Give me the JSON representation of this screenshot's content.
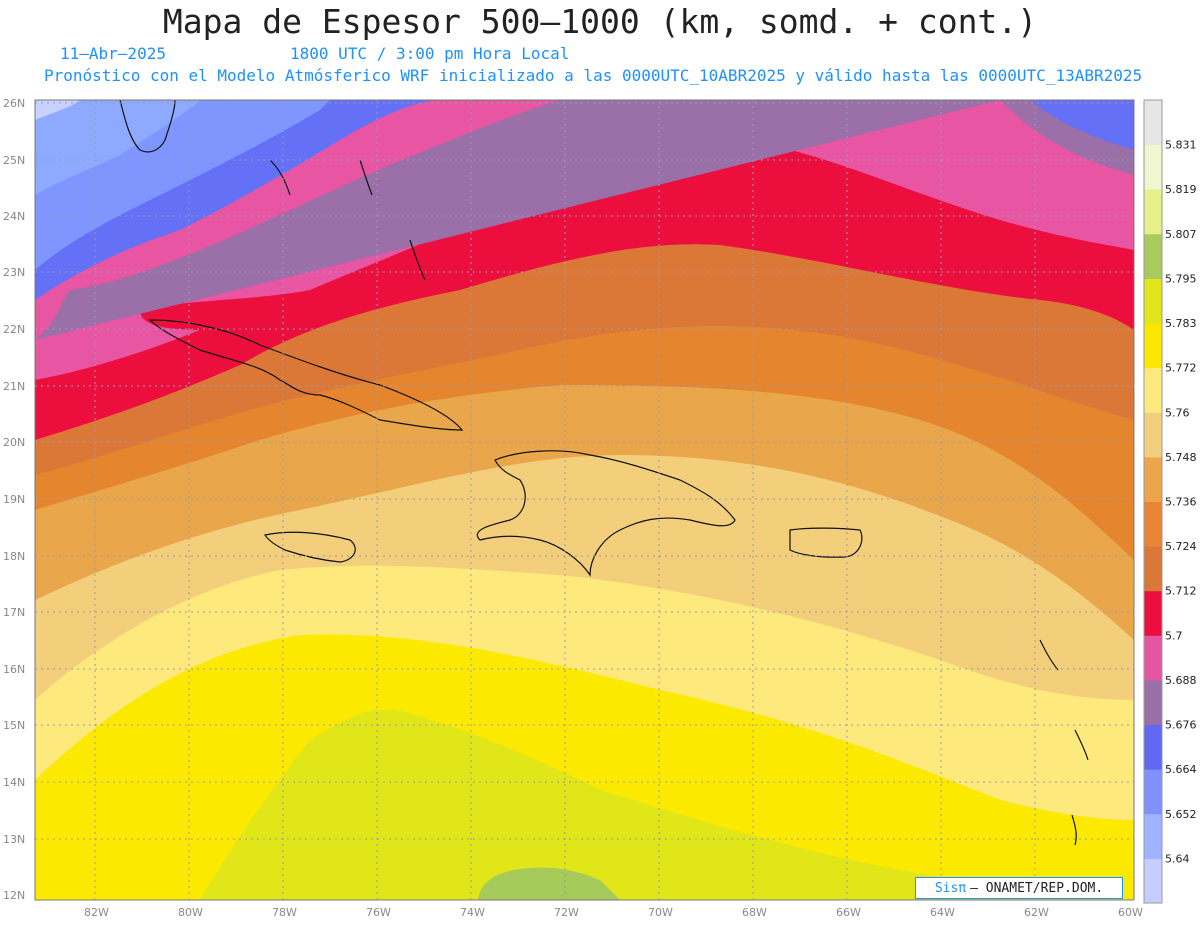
{
  "header": {
    "title": "Mapa de Espesor 500–1000 (km, somd. + cont.)",
    "date": "11–Abr–2025",
    "time": "1800 UTC / 3:00 pm Hora Local",
    "subtitle": "Pronóstico con el Modelo Atmósferico WRF inicializado a las 0000UTC_10ABR2025 y válido hasta las  0000UTC_13ABR2025"
  },
  "map": {
    "lat_labels": [
      "26N",
      "25N",
      "24N",
      "23N",
      "22N",
      "21N",
      "20N",
      "19N",
      "18N",
      "17N",
      "16N",
      "15N",
      "14N",
      "13N",
      "12N"
    ],
    "lon_labels": [
      "82W",
      "80W",
      "78W",
      "76W",
      "74W",
      "72W",
      "70W",
      "68W",
      "66W",
      "64W",
      "62W",
      "60W"
    ],
    "band_colors": [
      "#c8d1ff",
      "#8eaaff",
      "#7f95ff",
      "#6470f5",
      "#9b6fa8",
      "#e855a2",
      "#ec0f3e",
      "#db7838",
      "#e5862f",
      "#eaa64b",
      "#f3cf7c",
      "#fde97c",
      "#fce900",
      "#e0e618",
      "#a7cb5a",
      "#e6e72d",
      "#eef7a1",
      "#f1f6d5",
      "#e8e8e8"
    ]
  },
  "colorbar": {
    "labels": [
      "5.64",
      "5.652",
      "5.664",
      "5.676",
      "5.688",
      "5.7",
      "5.712",
      "5.724",
      "5.736",
      "5.748",
      "5.76",
      "5.772",
      "5.783",
      "5.795",
      "5.807",
      "5.819",
      "5.831"
    ],
    "colors": [
      "#c6ceff",
      "#9fb4ff",
      "#7f93ff",
      "#6167f0",
      "#9a6ea7",
      "#e456a4",
      "#ea0f3f",
      "#d97838",
      "#e88635",
      "#eba64c",
      "#f2cf7e",
      "#fde97e",
      "#fce700",
      "#e0e61a",
      "#a8cb5b",
      "#e8f08a",
      "#f0f6cf",
      "#e6e6e6"
    ]
  },
  "credit": {
    "brand": "Sisπ",
    "text": "– ONAMET/REP.DOM."
  }
}
